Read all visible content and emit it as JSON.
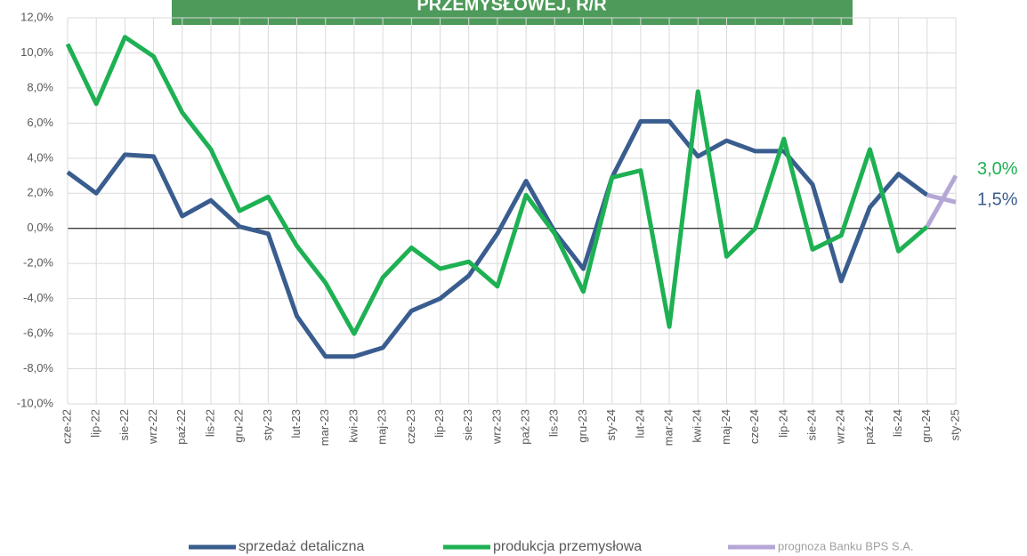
{
  "chart_data": {
    "type": "line",
    "title": "PRZEMYSŁOWEJ, R/R",
    "categories": [
      "cze-22",
      "lip-22",
      "sie-22",
      "wrz-22",
      "paź-22",
      "lis-22",
      "gru-22",
      "sty-23",
      "lut-23",
      "mar-23",
      "kwi-23",
      "maj-23",
      "cze-23",
      "lip-23",
      "sie-23",
      "wrz-23",
      "paź-23",
      "lis-23",
      "gru-23",
      "sty-24",
      "lut-24",
      "mar-24",
      "kwi-24",
      "maj-24",
      "cze-24",
      "lip-24",
      "sie-24",
      "wrz-24",
      "paź-24",
      "lis-24",
      "gru-24",
      "sty-25"
    ],
    "series": [
      {
        "name": "sprzedaż detaliczna",
        "color": "#3a5d8f",
        "values": [
          3.2,
          2.0,
          4.2,
          4.1,
          0.7,
          1.6,
          0.1,
          -0.3,
          -5.0,
          -7.3,
          -7.3,
          -6.8,
          -4.7,
          -4.0,
          -2.7,
          -0.3,
          2.7,
          -0.2,
          -2.3,
          2.9,
          6.1,
          6.1,
          4.1,
          5.0,
          4.4,
          4.4,
          2.5,
          -3.0,
          1.2,
          3.1,
          1.9,
          null
        ]
      },
      {
        "name": "produkcja przemysłowa",
        "color": "#1eb153",
        "values": [
          10.5,
          7.1,
          10.9,
          9.8,
          6.6,
          4.5,
          1.0,
          1.8,
          -1.0,
          -3.1,
          -6.0,
          -2.8,
          -1.1,
          -2.3,
          -1.9,
          -3.3,
          1.9,
          -0.3,
          -3.6,
          2.9,
          3.3,
          -5.6,
          7.8,
          -1.6,
          0.0,
          5.1,
          -1.2,
          -0.4,
          4.5,
          -1.3,
          0.1,
          null
        ]
      },
      {
        "name": "prognoza Banku BPS S.A.",
        "color": "#b4a7d6",
        "lines": [
          [
            null,
            null,
            null,
            null,
            null,
            null,
            null,
            null,
            null,
            null,
            null,
            null,
            null,
            null,
            null,
            null,
            null,
            null,
            null,
            null,
            null,
            null,
            null,
            null,
            null,
            null,
            null,
            null,
            null,
            null,
            1.9,
            1.5
          ],
          [
            null,
            null,
            null,
            null,
            null,
            null,
            null,
            null,
            null,
            null,
            null,
            null,
            null,
            null,
            null,
            null,
            null,
            null,
            null,
            null,
            null,
            null,
            null,
            null,
            null,
            null,
            null,
            null,
            null,
            null,
            0.1,
            3.0
          ]
        ]
      }
    ],
    "annotations": [
      {
        "text": "3,0%",
        "value": 3.0,
        "color": "#1eb153"
      },
      {
        "text": "1,5%",
        "value": 1.5,
        "color": "#3a5d8f"
      }
    ],
    "ylim": [
      -10,
      12
    ],
    "yticks": [
      {
        "value": 12,
        "label": "12,0%"
      },
      {
        "value": 10,
        "label": "10,0%"
      },
      {
        "value": 8,
        "label": "8,0%"
      },
      {
        "value": 6,
        "label": "6,0%"
      },
      {
        "value": 4,
        "label": "4,0%"
      },
      {
        "value": 2,
        "label": "2,0%"
      },
      {
        "value": 0,
        "label": "0,0%"
      },
      {
        "value": -2,
        "label": "-2,0%"
      },
      {
        "value": -4,
        "label": "-4,0%"
      },
      {
        "value": -6,
        "label": "-6,0%"
      },
      {
        "value": -8,
        "label": "-8,0%"
      },
      {
        "value": -10,
        "label": "-10,0%"
      }
    ],
    "grid": true,
    "legend": "bottom"
  }
}
